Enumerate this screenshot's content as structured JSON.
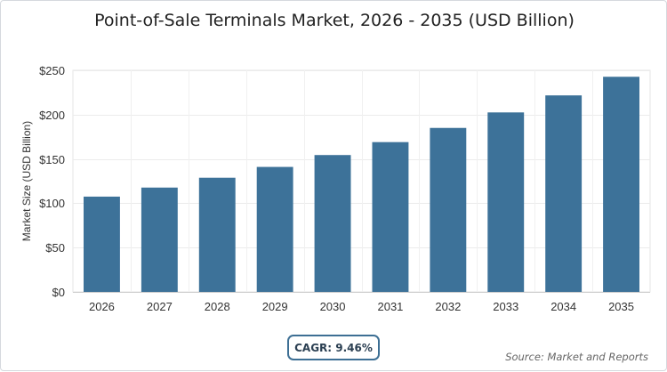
{
  "chart_data": {
    "type": "bar",
    "title": "Point-of-Sale Terminals Market, 2026 - 2035 (USD Billion)",
    "xlabel": "",
    "ylabel": "Market Size (USD Billion)",
    "categories": [
      "2026",
      "2027",
      "2028",
      "2029",
      "2030",
      "2031",
      "2032",
      "2033",
      "2034",
      "2035"
    ],
    "values": [
      107.5,
      117.7,
      128.8,
      141.0,
      154.4,
      169.0,
      185.0,
      202.5,
      221.7,
      242.7
    ],
    "ylim": [
      0,
      250
    ],
    "yticks": [
      0,
      50,
      100,
      150,
      200,
      250
    ],
    "ytick_labels": [
      "$0",
      "$50",
      "$100",
      "$150",
      "$200",
      "$250"
    ],
    "grid": true,
    "bar_color": "#3d7299"
  },
  "cagr": "CAGR: 9.46%",
  "source": "Source: Market and Reports"
}
